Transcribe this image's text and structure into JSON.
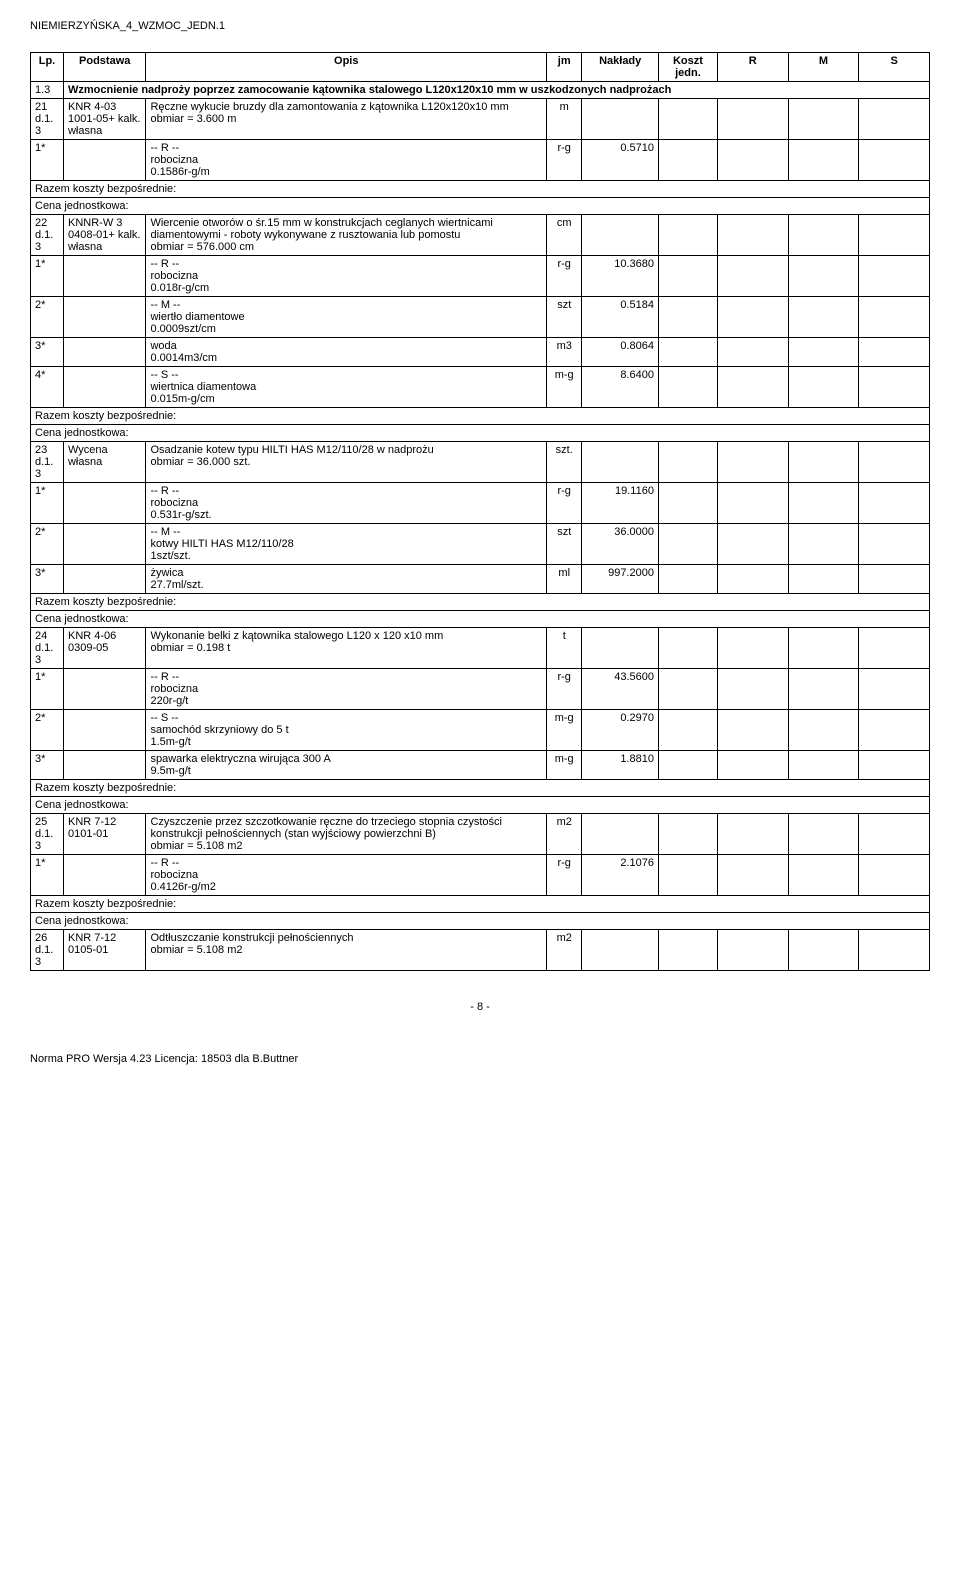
{
  "header": {
    "title": "NIEMIERZYŃSKA_4_WZMOC_JEDN.1"
  },
  "columns": {
    "lp": "Lp.",
    "podstawa": "Podstawa",
    "opis": "Opis",
    "jm": "jm",
    "naklady": "Nakłady",
    "koszt": "Koszt jedn.",
    "r": "R",
    "m": "M",
    "s": "S"
  },
  "section": {
    "num": "1.3",
    "text": "Wzmocnienie nadproży poprzez zamocowanie kątownika stalowego L120x120x10 mm w uszkodzonych nadprożach"
  },
  "razem_label": "Razem koszty bezpośrednie:",
  "cena_label": "Cena jednostkowa:",
  "rows": {
    "r21": {
      "lp": "21",
      "d": "d.1.3",
      "podstawa": "KNR 4-03 1001-05+ kalk. własna",
      "opis": "Ręczne wykucie bruzdy dla zamontowania z kątownika L120x120x10 mm\nobmiar  = 3.600 m",
      "jm": "m",
      "sub": [
        {
          "mark": "1*",
          "label": "-- R --",
          "text": "robocizna\n0.1586r-g/m",
          "jm": "r-g",
          "val": "0.5710"
        }
      ]
    },
    "r22": {
      "lp": "22",
      "d": "d.1.3",
      "podstawa": "KNNR-W 3 0408-01+ kalk. własna",
      "opis": "Wiercenie otworów o śr.15 mm w konstrukcjach ceglanych wiertnicami diamentowymi - roboty wykonywane z rusztowania lub pomostu\nobmiar  = 576.000 cm",
      "jm": "cm",
      "sub": [
        {
          "mark": "1*",
          "label": "-- R --",
          "text": "robocizna\n0.018r-g/cm",
          "jm": "r-g",
          "val": "10.3680"
        },
        {
          "mark": "2*",
          "label": "-- M --",
          "text": "wiertło diamentowe\n0.0009szt/cm",
          "jm": "szt",
          "val": "0.5184"
        },
        {
          "mark": "3*",
          "label": "",
          "text": "woda\n0.0014m3/cm",
          "jm": "m3",
          "val": "0.8064"
        },
        {
          "mark": "4*",
          "label": "-- S --",
          "text": "wiertnica diamentowa\n0.015m-g/cm",
          "jm": "m-g",
          "val": "8.6400"
        }
      ]
    },
    "r23": {
      "lp": "23",
      "d": "d.1.3",
      "podstawa": "Wycena własna",
      "opis": "Osadzanie kotew typu HILTI HAS  M12/110/28 w nadprożu\nobmiar  = 36.000 szt.",
      "jm": "szt.",
      "sub": [
        {
          "mark": "1*",
          "label": "-- R --",
          "text": "robocizna\n0.531r-g/szt.",
          "jm": "r-g",
          "val": "19.1160"
        },
        {
          "mark": "2*",
          "label": "-- M --",
          "text": "kotwy HILTI HAS M12/110/28\n1szt/szt.",
          "jm": "szt",
          "val": "36.0000"
        },
        {
          "mark": "3*",
          "label": "",
          "text": "żywica\n27.7ml/szt.",
          "jm": "ml",
          "val": "997.2000"
        }
      ]
    },
    "r24": {
      "lp": "24",
      "d": "d.1.3",
      "podstawa": "KNR 4-06 0309-05",
      "opis": "Wykonanie belki z kątownika stalowego L120 x 120 x10 mm\nobmiar  = 0.198 t",
      "jm": "t",
      "sub": [
        {
          "mark": "1*",
          "label": "-- R --",
          "text": "robocizna\n220r-g/t",
          "jm": "r-g",
          "val": "43.5600"
        },
        {
          "mark": "2*",
          "label": "-- S --",
          "text": "samochód skrzyniowy do 5 t\n1.5m-g/t",
          "jm": "m-g",
          "val": "0.2970"
        },
        {
          "mark": "3*",
          "label": "",
          "text": "spawarka elektryczna wirująca 300 A\n9.5m-g/t",
          "jm": "m-g",
          "val": "1.8810"
        }
      ]
    },
    "r25": {
      "lp": "25",
      "d": "d.1.3",
      "podstawa": "KNR 7-12 0101-01",
      "opis": "Czyszczenie przez szczotkowanie ręczne do trzeciego stopnia czystości konstrukcji pełnościennych (stan wyjściowy powierzchni B)\nobmiar  = 5.108 m2",
      "jm": "m2",
      "sub": [
        {
          "mark": "1*",
          "label": "-- R --",
          "text": "robocizna\n0.4126r-g/m2",
          "jm": "r-g",
          "val": "2.1076"
        }
      ]
    },
    "r26": {
      "lp": "26",
      "d": "d.1.3",
      "podstawa": "KNR 7-12 0105-01",
      "opis": "Odtłuszczanie konstrukcji pełnościennych\nobmiar  = 5.108 m2",
      "jm": "m2"
    }
  },
  "page_num": "- 8 -",
  "footer": "Norma PRO Wersja 4.23 Licencja: 18503 dla B.Buttner"
}
